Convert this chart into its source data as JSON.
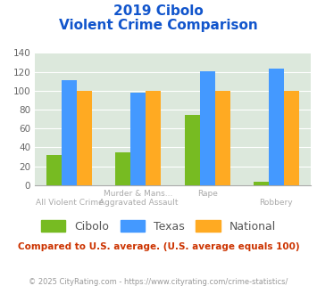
{
  "title_line1": "2019 Cibolo",
  "title_line2": "Violent Crime Comparison",
  "cat_labels_top": [
    "",
    "Murder & Mans...",
    "Rape",
    ""
  ],
  "cat_labels_bot": [
    "All Violent Crime",
    "Aggravated Assault",
    "",
    "Robbery"
  ],
  "cibolo": [
    32,
    35,
    74,
    4
  ],
  "texas": [
    111,
    98,
    121,
    123
  ],
  "national": [
    100,
    100,
    100,
    100
  ],
  "cibolo_color": "#77bb22",
  "texas_color": "#4499ff",
  "national_color": "#ffaa22",
  "ylim": [
    0,
    140
  ],
  "yticks": [
    0,
    20,
    40,
    60,
    80,
    100,
    120,
    140
  ],
  "background_color": "#dce8dc",
  "note": "Compared to U.S. average. (U.S. average equals 100)",
  "footer": "© 2025 CityRating.com - https://www.cityrating.com/crime-statistics/",
  "title_color": "#1155cc",
  "note_color": "#cc3300",
  "footer_color": "#999999"
}
